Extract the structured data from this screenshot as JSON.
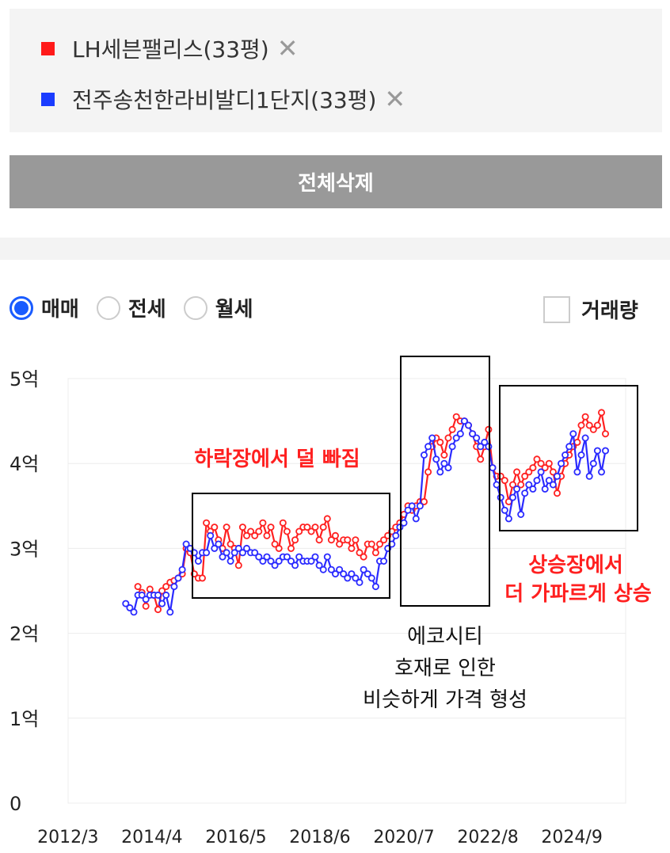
{
  "legend": {
    "items": [
      {
        "label": "LH세븐팰리스(33평)",
        "color": "#ff1a1a",
        "close": "✕"
      },
      {
        "label": "전주송천한라비발디1단지(33평)",
        "color": "#1a3cff",
        "close": "✕"
      }
    ]
  },
  "delete_all": "전체삭제",
  "options": {
    "sale": "매매",
    "jeonse": "전세",
    "monthly": "월세",
    "volume": "거래량"
  },
  "chart_data": {
    "type": "line",
    "ylim": [
      0,
      5
    ],
    "y_ticks": [
      "0",
      "1억",
      "2억",
      "3억",
      "4억",
      "5억"
    ],
    "x_ticks": [
      "2012/3",
      "2014/4",
      "2016/5",
      "2018/6",
      "2020/7",
      "2022/8",
      "2024/9"
    ],
    "xlim": [
      2012.17,
      2026.0
    ],
    "series": [
      {
        "name": "LH세븐팰리스(33평)",
        "color": "#ff2020",
        "points": [
          [
            2013.9,
            2.55
          ],
          [
            2014.0,
            2.48
          ],
          [
            2014.1,
            2.32
          ],
          [
            2014.2,
            2.52
          ],
          [
            2014.3,
            2.45
          ],
          [
            2014.4,
            2.28
          ],
          [
            2014.5,
            2.5
          ],
          [
            2014.6,
            2.55
          ],
          [
            2014.7,
            2.6
          ],
          [
            2014.8,
            2.62
          ],
          [
            2014.9,
            2.65
          ],
          [
            2015.0,
            2.7
          ],
          [
            2015.1,
            3.0
          ],
          [
            2015.2,
            2.95
          ],
          [
            2015.3,
            2.7
          ],
          [
            2015.4,
            2.65
          ],
          [
            2015.5,
            2.65
          ],
          [
            2015.6,
            3.3
          ],
          [
            2015.7,
            3.2
          ],
          [
            2015.8,
            3.25
          ],
          [
            2015.9,
            3.1
          ],
          [
            2016.0,
            3.0
          ],
          [
            2016.1,
            3.25
          ],
          [
            2016.2,
            3.05
          ],
          [
            2016.3,
            3.0
          ],
          [
            2016.4,
            2.8
          ],
          [
            2016.5,
            3.25
          ],
          [
            2016.6,
            3.15
          ],
          [
            2016.7,
            3.2
          ],
          [
            2016.8,
            3.15
          ],
          [
            2016.9,
            3.2
          ],
          [
            2017.0,
            3.3
          ],
          [
            2017.1,
            3.15
          ],
          [
            2017.2,
            3.25
          ],
          [
            2017.3,
            3.05
          ],
          [
            2017.4,
            3.0
          ],
          [
            2017.5,
            3.3
          ],
          [
            2017.6,
            3.2
          ],
          [
            2017.7,
            3.0
          ],
          [
            2017.8,
            3.1
          ],
          [
            2017.9,
            3.2
          ],
          [
            2018.0,
            3.25
          ],
          [
            2018.1,
            3.25
          ],
          [
            2018.2,
            3.2
          ],
          [
            2018.3,
            3.25
          ],
          [
            2018.4,
            3.1
          ],
          [
            2018.5,
            3.25
          ],
          [
            2018.6,
            3.35
          ],
          [
            2018.7,
            3.1
          ],
          [
            2018.8,
            3.15
          ],
          [
            2018.9,
            3.05
          ],
          [
            2019.0,
            3.1
          ],
          [
            2019.1,
            3.1
          ],
          [
            2019.2,
            3.0
          ],
          [
            2019.3,
            3.1
          ],
          [
            2019.4,
            2.95
          ],
          [
            2019.5,
            2.9
          ],
          [
            2019.6,
            3.05
          ],
          [
            2019.7,
            3.05
          ],
          [
            2019.8,
            2.95
          ],
          [
            2019.9,
            3.05
          ],
          [
            2020.0,
            3.1
          ],
          [
            2020.1,
            3.15
          ],
          [
            2020.2,
            3.2
          ],
          [
            2020.3,
            3.25
          ],
          [
            2020.4,
            3.3
          ],
          [
            2020.5,
            3.4
          ],
          [
            2020.6,
            3.5
          ],
          [
            2020.7,
            3.45
          ],
          [
            2020.8,
            3.5
          ],
          [
            2020.9,
            3.55
          ],
          [
            2021.0,
            3.55
          ],
          [
            2021.1,
            3.9
          ],
          [
            2021.2,
            4.2
          ],
          [
            2021.3,
            4.3
          ],
          [
            2021.4,
            4.25
          ],
          [
            2021.5,
            4.1
          ],
          [
            2021.6,
            4.3
          ],
          [
            2021.7,
            4.4
          ],
          [
            2021.8,
            4.55
          ],
          [
            2021.9,
            4.5
          ],
          [
            2022.0,
            4.5
          ],
          [
            2022.1,
            4.45
          ],
          [
            2022.2,
            4.35
          ],
          [
            2022.3,
            4.2
          ],
          [
            2022.4,
            4.05
          ],
          [
            2022.5,
            4.2
          ],
          [
            2022.6,
            4.4
          ],
          [
            2022.7,
            3.95
          ],
          [
            2022.8,
            3.85
          ],
          [
            2022.9,
            3.85
          ],
          [
            2023.0,
            3.8
          ],
          [
            2023.1,
            3.55
          ],
          [
            2023.2,
            3.75
          ],
          [
            2023.3,
            3.9
          ],
          [
            2023.4,
            3.75
          ],
          [
            2023.5,
            3.85
          ],
          [
            2023.6,
            3.9
          ],
          [
            2023.7,
            3.95
          ],
          [
            2023.8,
            4.05
          ],
          [
            2023.9,
            4.0
          ],
          [
            2024.0,
            3.95
          ],
          [
            2024.1,
            4.0
          ],
          [
            2024.2,
            3.9
          ],
          [
            2024.3,
            3.65
          ],
          [
            2024.4,
            3.85
          ],
          [
            2024.5,
            4.0
          ],
          [
            2024.6,
            4.1
          ],
          [
            2024.7,
            4.2
          ],
          [
            2024.8,
            4.25
          ],
          [
            2024.9,
            4.45
          ],
          [
            2025.0,
            4.55
          ],
          [
            2025.1,
            4.45
          ],
          [
            2025.2,
            4.4
          ],
          [
            2025.3,
            4.45
          ],
          [
            2025.4,
            4.6
          ],
          [
            2025.5,
            4.35
          ]
        ]
      },
      {
        "name": "전주송천한라비발디1단지(33평)",
        "color": "#2a2aff",
        "points": [
          [
            2013.6,
            2.35
          ],
          [
            2013.7,
            2.3
          ],
          [
            2013.8,
            2.25
          ],
          [
            2013.9,
            2.45
          ],
          [
            2014.0,
            2.45
          ],
          [
            2014.1,
            2.4
          ],
          [
            2014.2,
            2.45
          ],
          [
            2014.3,
            2.45
          ],
          [
            2014.4,
            2.45
          ],
          [
            2014.5,
            2.35
          ],
          [
            2014.6,
            2.45
          ],
          [
            2014.7,
            2.25
          ],
          [
            2014.8,
            2.55
          ],
          [
            2014.9,
            2.65
          ],
          [
            2015.0,
            2.75
          ],
          [
            2015.1,
            3.05
          ],
          [
            2015.2,
            3.0
          ],
          [
            2015.3,
            2.95
          ],
          [
            2015.4,
            2.85
          ],
          [
            2015.5,
            2.95
          ],
          [
            2015.6,
            2.95
          ],
          [
            2015.7,
            3.15
          ],
          [
            2015.8,
            3.0
          ],
          [
            2015.9,
            3.05
          ],
          [
            2016.0,
            2.9
          ],
          [
            2016.1,
            2.95
          ],
          [
            2016.2,
            2.85
          ],
          [
            2016.3,
            2.95
          ],
          [
            2016.4,
            3.0
          ],
          [
            2016.5,
            2.95
          ],
          [
            2016.6,
            3.0
          ],
          [
            2016.7,
            2.95
          ],
          [
            2016.8,
            2.95
          ],
          [
            2016.9,
            2.9
          ],
          [
            2017.0,
            2.85
          ],
          [
            2017.1,
            2.9
          ],
          [
            2017.2,
            2.85
          ],
          [
            2017.3,
            2.8
          ],
          [
            2017.4,
            2.85
          ],
          [
            2017.5,
            2.9
          ],
          [
            2017.6,
            2.9
          ],
          [
            2017.7,
            2.85
          ],
          [
            2017.8,
            2.8
          ],
          [
            2017.9,
            2.9
          ],
          [
            2018.0,
            2.85
          ],
          [
            2018.1,
            2.85
          ],
          [
            2018.2,
            2.85
          ],
          [
            2018.3,
            2.9
          ],
          [
            2018.4,
            2.8
          ],
          [
            2018.5,
            2.75
          ],
          [
            2018.6,
            2.9
          ],
          [
            2018.7,
            2.75
          ],
          [
            2018.8,
            2.7
          ],
          [
            2018.9,
            2.75
          ],
          [
            2019.0,
            2.7
          ],
          [
            2019.1,
            2.65
          ],
          [
            2019.2,
            2.7
          ],
          [
            2019.3,
            2.65
          ],
          [
            2019.4,
            2.6
          ],
          [
            2019.5,
            2.75
          ],
          [
            2019.6,
            2.7
          ],
          [
            2019.7,
            2.65
          ],
          [
            2019.8,
            2.55
          ],
          [
            2019.9,
            2.85
          ],
          [
            2020.0,
            2.85
          ],
          [
            2020.1,
            3.0
          ],
          [
            2020.2,
            3.05
          ],
          [
            2020.3,
            3.15
          ],
          [
            2020.4,
            3.25
          ],
          [
            2020.5,
            3.3
          ],
          [
            2020.6,
            3.45
          ],
          [
            2020.7,
            3.5
          ],
          [
            2020.8,
            3.35
          ],
          [
            2020.9,
            3.5
          ],
          [
            2021.0,
            4.1
          ],
          [
            2021.1,
            4.2
          ],
          [
            2021.2,
            4.3
          ],
          [
            2021.3,
            4.05
          ],
          [
            2021.4,
            3.9
          ],
          [
            2021.5,
            4.0
          ],
          [
            2021.6,
            3.95
          ],
          [
            2021.7,
            4.2
          ],
          [
            2021.8,
            4.3
          ],
          [
            2021.9,
            4.35
          ],
          [
            2022.0,
            4.5
          ],
          [
            2022.1,
            4.45
          ],
          [
            2022.2,
            4.35
          ],
          [
            2022.3,
            4.3
          ],
          [
            2022.4,
            4.2
          ],
          [
            2022.5,
            4.25
          ],
          [
            2022.6,
            4.2
          ],
          [
            2022.7,
            3.95
          ],
          [
            2022.8,
            3.75
          ],
          [
            2022.9,
            3.6
          ],
          [
            2023.0,
            3.45
          ],
          [
            2023.1,
            3.35
          ],
          [
            2023.2,
            3.6
          ],
          [
            2023.3,
            3.7
          ],
          [
            2023.4,
            3.4
          ],
          [
            2023.5,
            3.65
          ],
          [
            2023.6,
            3.75
          ],
          [
            2023.7,
            3.7
          ],
          [
            2023.8,
            3.8
          ],
          [
            2023.9,
            3.9
          ],
          [
            2024.0,
            3.7
          ],
          [
            2024.1,
            3.8
          ],
          [
            2024.2,
            3.75
          ],
          [
            2024.3,
            3.85
          ],
          [
            2024.4,
            4.0
          ],
          [
            2024.5,
            4.1
          ],
          [
            2024.6,
            4.2
          ],
          [
            2024.7,
            4.35
          ],
          [
            2024.8,
            3.9
          ],
          [
            2024.9,
            4.1
          ],
          [
            2025.0,
            4.3
          ],
          [
            2025.1,
            3.85
          ],
          [
            2025.2,
            4.0
          ],
          [
            2025.3,
            4.15
          ],
          [
            2025.4,
            3.9
          ],
          [
            2025.5,
            4.15
          ]
        ]
      }
    ],
    "annotations": [
      {
        "lines": [
          "하락장에서 덜 빠짐"
        ],
        "color": "#ff2020"
      },
      {
        "lines": [
          "에코시티",
          "호재로 인한",
          "비슷하게 가격 형성"
        ],
        "color": "#111111"
      },
      {
        "lines": [
          "상승장에서",
          "더 가파르게 상승"
        ],
        "color": "#ff2020"
      }
    ]
  }
}
